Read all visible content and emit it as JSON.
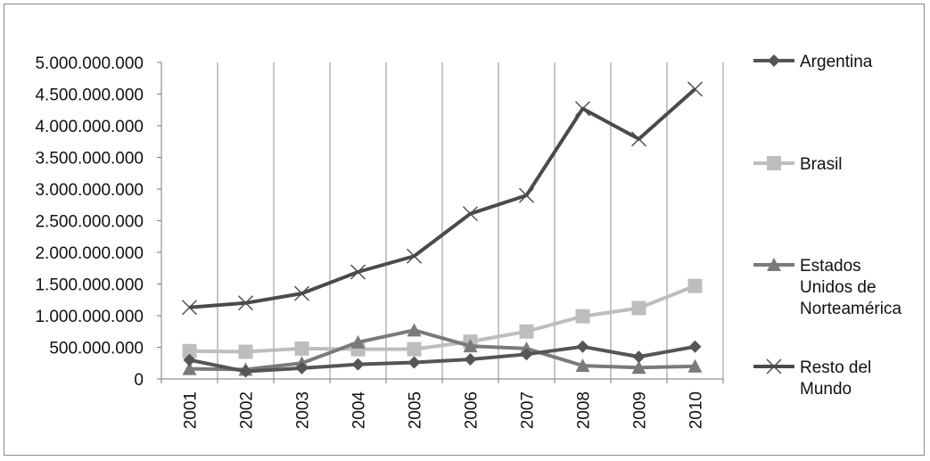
{
  "chart_data": {
    "type": "line",
    "title": "",
    "xlabel": "",
    "ylabel": "",
    "categories": [
      "2001",
      "2002",
      "2003",
      "2004",
      "2005",
      "2006",
      "2007",
      "2008",
      "2009",
      "2010"
    ],
    "ylim": [
      0,
      5000000000
    ],
    "yticks": [
      0,
      500000000,
      1000000000,
      1500000000,
      2000000000,
      2500000000,
      3000000000,
      3500000000,
      4000000000,
      4500000000,
      5000000000
    ],
    "ytick_labels": [
      "0",
      "500.000.000",
      "1.000.000.000",
      "1.500.000.000",
      "2.000.000.000",
      "2.500.000.000",
      "3.000.000.000",
      "3.500.000.000",
      "4.000.000.000",
      "4.500.000.000",
      "5.000.000.000"
    ],
    "grid": "vertical",
    "legend_position": "right",
    "series": [
      {
        "name": "Argentina",
        "marker": "diamond",
        "color": "#555555",
        "values": [
          300000000,
          120000000,
          170000000,
          230000000,
          260000000,
          310000000,
          390000000,
          510000000,
          350000000,
          510000000
        ]
      },
      {
        "name": "Brasil",
        "marker": "square",
        "color": "#bdbdbd",
        "values": [
          440000000,
          430000000,
          480000000,
          470000000,
          470000000,
          590000000,
          750000000,
          990000000,
          1120000000,
          1470000000
        ]
      },
      {
        "name": "Estados Unidos de Norteamérica",
        "marker": "triangle",
        "color": "#7a7a7a",
        "values": [
          160000000,
          150000000,
          250000000,
          580000000,
          770000000,
          520000000,
          480000000,
          210000000,
          180000000,
          200000000
        ]
      },
      {
        "name": "Resto del Mundo",
        "marker": "x",
        "color": "#4a4a4a",
        "values": [
          1130000000,
          1200000000,
          1350000000,
          1690000000,
          1940000000,
          2610000000,
          2900000000,
          4270000000,
          3790000000,
          4580000000
        ]
      }
    ],
    "legend": [
      {
        "lines": [
          "Argentina"
        ]
      },
      {
        "lines": [
          "Brasil"
        ]
      },
      {
        "lines": [
          "Estados",
          "Unidos de",
          "Norteamérica"
        ]
      },
      {
        "lines": [
          "Resto del",
          "Mundo"
        ]
      }
    ]
  }
}
